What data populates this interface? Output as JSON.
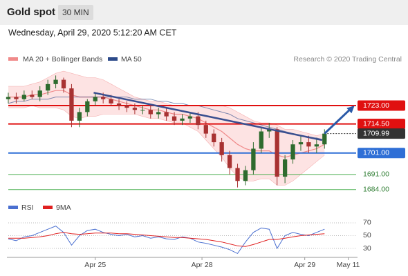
{
  "header": {
    "title": "Gold spot",
    "interval": "30 MIN"
  },
  "chart_data": {
    "type": "candlestick",
    "subtitle": "Wednesday, April 29, 2020 5:12:20 AM CET",
    "source": "Research © 2020 Trading Central",
    "xlim": [
      0,
      44
    ],
    "xticks": [
      {
        "value": 11,
        "label": "Apr 25"
      },
      {
        "value": 24.5,
        "label": "Apr 28"
      },
      {
        "value": 37.5,
        "label": "Apr 29"
      },
      {
        "value": 43,
        "label": "May 11"
      }
    ],
    "ylim": [
      1682,
      1740
    ],
    "up_color": "#2e6b2e",
    "down_color": "#a83232",
    "open": [
      1726,
      1727,
      1726,
      1728,
      1727,
      1730,
      1733,
      1735,
      1731,
      1716,
      1720,
      1725,
      1727,
      1726,
      1724,
      1723,
      1722,
      1721,
      1721,
      1719,
      1720,
      1718,
      1716,
      1717,
      1718,
      1714,
      1710,
      1706,
      1700,
      1694,
      1688,
      1693,
      1703,
      1711,
      1712,
      1690,
      1698,
      1705,
      1706,
      1704,
      1705
    ],
    "high": [
      1729,
      1729,
      1730,
      1730,
      1732,
      1735,
      1737,
      1736,
      1733,
      1722,
      1726,
      1729,
      1729,
      1728,
      1726,
      1725,
      1724,
      1723,
      1723,
      1722,
      1722,
      1720,
      1719,
      1720,
      1720,
      1716,
      1712,
      1708,
      1702,
      1696,
      1695,
      1706,
      1713,
      1715,
      1713,
      1700,
      1707,
      1709,
      1709,
      1708,
      1712
    ],
    "low": [
      1724,
      1724,
      1725,
      1726,
      1725,
      1728,
      1731,
      1729,
      1713,
      1713,
      1718,
      1723,
      1724,
      1723,
      1721,
      1720,
      1719,
      1719,
      1717,
      1717,
      1716,
      1714,
      1714,
      1715,
      1712,
      1708,
      1704,
      1697,
      1691,
      1685,
      1686,
      1691,
      1701,
      1708,
      1686,
      1687,
      1696,
      1702,
      1701,
      1701,
      1703
    ],
    "close": [
      1727,
      1726,
      1728,
      1727,
      1730,
      1733,
      1735,
      1731,
      1716,
      1720,
      1725,
      1727,
      1726,
      1724,
      1723,
      1722,
      1721,
      1721,
      1719,
      1720,
      1718,
      1716,
      1717,
      1718,
      1714,
      1710,
      1706,
      1700,
      1694,
      1688,
      1693,
      1703,
      1711,
      1712,
      1690,
      1698,
      1705,
      1706,
      1704,
      1705,
      1710
    ],
    "bollinger": {
      "name": "MA 20 + Bollinger Bands",
      "color": "#f08a8a",
      "band_color": "#fde3e3",
      "upper": [
        1732,
        1732,
        1732,
        1733,
        1734,
        1736,
        1738,
        1739,
        1738,
        1737,
        1736,
        1736,
        1735,
        1733,
        1731,
        1729,
        1727,
        1726,
        1725,
        1725,
        1724,
        1723,
        1723,
        1723,
        1723,
        1723,
        1723,
        1723,
        1722,
        1720,
        1718,
        1716,
        1715,
        1715,
        1714,
        1712,
        1712,
        1711,
        1710,
        1709,
        1710
      ],
      "middle": [
        1727,
        1727,
        1727,
        1728,
        1728,
        1729,
        1730,
        1730,
        1728,
        1727,
        1727,
        1727,
        1727,
        1726,
        1725,
        1724,
        1723,
        1722,
        1721,
        1721,
        1720,
        1719,
        1719,
        1718,
        1717,
        1715,
        1713,
        1711,
        1708,
        1705,
        1703,
        1702,
        1702,
        1702,
        1700,
        1699,
        1700,
        1701,
        1702,
        1703,
        1705
      ],
      "lower": [
        1722,
        1722,
        1722,
        1723,
        1722,
        1722,
        1722,
        1721,
        1718,
        1717,
        1718,
        1718,
        1719,
        1719,
        1719,
        1719,
        1719,
        1718,
        1717,
        1717,
        1716,
        1715,
        1715,
        1713,
        1711,
        1707,
        1703,
        1699,
        1694,
        1690,
        1688,
        1688,
        1689,
        1689,
        1686,
        1686,
        1688,
        1691,
        1694,
        1697,
        1700
      ]
    },
    "ma50": {
      "name": "MA 50",
      "color": "#2c4a8a",
      "values": [
        1724,
        1725,
        1725,
        1726,
        1726,
        1726,
        1727,
        1727,
        1727,
        1727,
        1727,
        1727,
        1727,
        1727,
        1727,
        1727,
        1726,
        1726,
        1726,
        1725,
        1725,
        1724,
        1724,
        1723,
        1723,
        1722,
        1721,
        1720,
        1719,
        1717,
        1716,
        1715,
        1714,
        1713,
        1712,
        1711,
        1710,
        1709,
        1708,
        1708,
        1707
      ]
    },
    "levels": [
      {
        "value": 1723,
        "label": "1723.00",
        "color": "#e01010",
        "style": "solid"
      },
      {
        "value": 1714.5,
        "label": "1714.50",
        "color": "#e01010",
        "style": "solid"
      },
      {
        "value": 1709.99,
        "label": "1709.99",
        "color": "#333333",
        "style": "dotted"
      },
      {
        "value": 1701,
        "label": "1701.00",
        "color": "#2f6fd6",
        "style": "solid"
      },
      {
        "value": 1691,
        "label": "1691.00",
        "color": "#4caf50",
        "style": "thin"
      },
      {
        "value": 1684,
        "label": "1684.00",
        "color": "#4caf50",
        "style": "thin"
      }
    ],
    "trendline": {
      "x": [
        10.8,
        39.7
      ],
      "y": [
        1729,
        1707
      ],
      "color": "#3a4f8f"
    },
    "arrow": {
      "x": [
        40,
        43.8
      ],
      "y": [
        1710,
        1723
      ],
      "color": "#2b5aa8"
    },
    "rsi": {
      "ylim": [
        17,
        84
      ],
      "yticks": [
        70,
        50,
        30
      ],
      "series": [
        {
          "name": "RSI",
          "color": "#4a6fd0",
          "values": [
            45,
            42,
            48,
            50,
            55,
            60,
            65,
            55,
            35,
            50,
            58,
            60,
            55,
            52,
            50,
            52,
            48,
            50,
            46,
            48,
            45,
            44,
            48,
            46,
            40,
            38,
            35,
            32,
            28,
            22,
            40,
            55,
            62,
            60,
            30,
            50,
            55,
            52,
            50,
            55,
            60
          ]
        },
        {
          "name": "9MA",
          "color": "#e02020",
          "values": [
            46,
            46,
            46,
            47,
            48,
            50,
            53,
            55,
            53,
            52,
            53,
            54,
            54,
            54,
            53,
            53,
            52,
            51,
            50,
            49,
            48,
            47,
            47,
            46,
            45,
            44,
            42,
            40,
            37,
            34,
            33,
            36,
            40,
            44,
            44,
            46,
            48,
            50,
            51,
            52,
            53
          ]
        }
      ]
    }
  }
}
